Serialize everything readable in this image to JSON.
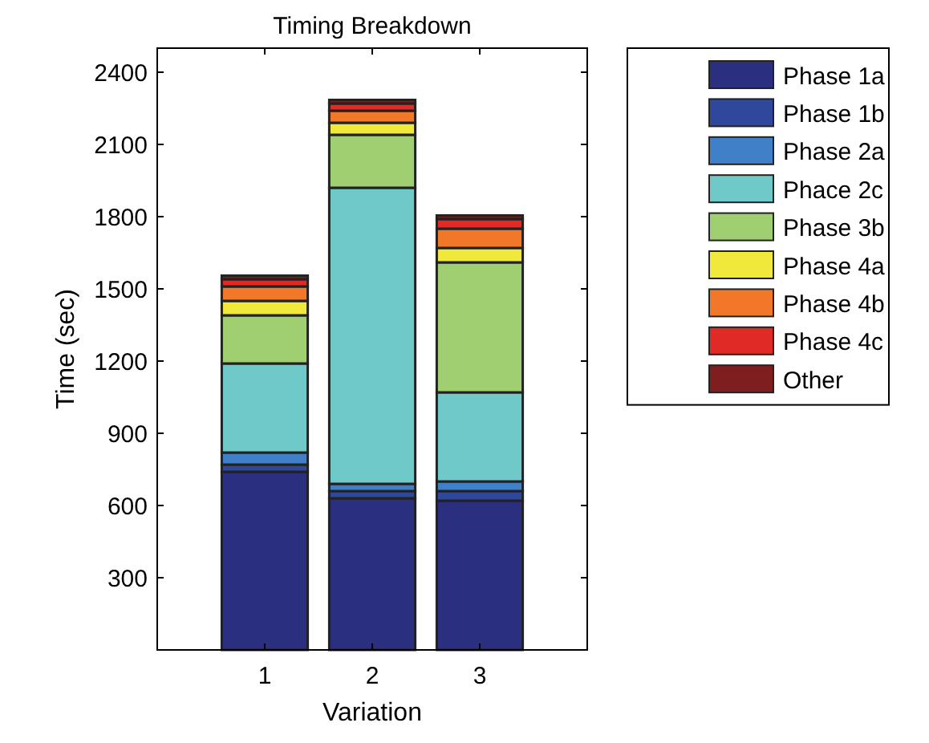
{
  "chart_data": {
    "type": "bar",
    "title": "Timing Breakdown",
    "xlabel": "Variation",
    "ylabel": "Time (sec)",
    "categories": [
      "1",
      "2",
      "3"
    ],
    "stacked": true,
    "legend": "top right",
    "ylim": [
      0,
      2500
    ],
    "yticks": [
      300,
      600,
      900,
      1200,
      1500,
      1800,
      2100,
      2400
    ],
    "series": [
      {
        "name": "Phase 1a",
        "color": "#2b2f7f",
        "values": [
          740,
          630,
          620
        ]
      },
      {
        "name": "Phase 1b",
        "color": "#30489c",
        "values": [
          30,
          30,
          40
        ]
      },
      {
        "name": "Phase 2a",
        "color": "#4080c8",
        "values": [
          50,
          30,
          40
        ]
      },
      {
        "name": "Phace 2c",
        "color": "#70c9c9",
        "values": [
          370,
          1230,
          370
        ]
      },
      {
        "name": "Phase 3b",
        "color": "#9fcf70",
        "values": [
          200,
          220,
          540
        ]
      },
      {
        "name": "Phase 4a",
        "color": "#f0e83a",
        "values": [
          60,
          50,
          60
        ]
      },
      {
        "name": "Phase 4b",
        "color": "#f07828",
        "values": [
          60,
          50,
          80
        ]
      },
      {
        "name": "Phase 4c",
        "color": "#e02a25",
        "values": [
          30,
          30,
          40
        ]
      },
      {
        "name": "Other",
        "color": "#7f1e1e",
        "values": [
          15,
          15,
          15
        ]
      }
    ]
  }
}
